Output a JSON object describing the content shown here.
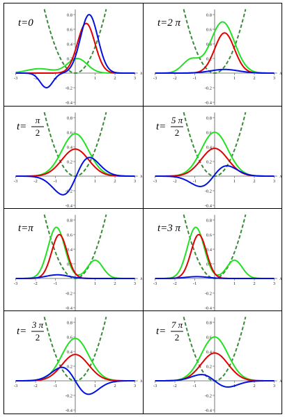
{
  "panels": [
    {
      "label": "t=0",
      "red": {
        "A": 0.68,
        "mu": 0.55,
        "s": 0.62
      },
      "green": {
        "type": "sum",
        "p": [
          {
            "A": 0.2,
            "mu": 0.1,
            "s": 0.7
          },
          {
            "A": 0.06,
            "mu": -1.8,
            "s": 0.9
          }
        ]
      },
      "blue": {
        "type": "sum",
        "p": [
          {
            "A": 0.8,
            "mu": 0.7,
            "s": 0.62
          },
          {
            "A": -0.2,
            "mu": -1.45,
            "s": 0.45
          }
        ]
      }
    },
    {
      "label": "t=2π",
      "red": {
        "A": 0.55,
        "mu": 0.5,
        "s": 0.7
      },
      "green": {
        "type": "sum",
        "p": [
          {
            "A": 0.7,
            "mu": 0.4,
            "s": 0.85
          },
          {
            "A": 0.18,
            "mu": -1.2,
            "s": 0.6
          }
        ]
      },
      "blue": {
        "type": "sum",
        "p": [
          {
            "A": 0.05,
            "mu": 0.5,
            "s": 1.0
          }
        ]
      }
    },
    {
      "label": "t=π/2",
      "red": {
        "A": 0.37,
        "mu": 0.0,
        "s": 0.95
      },
      "green": {
        "type": "sum",
        "p": [
          {
            "A": 0.58,
            "mu": 0.0,
            "s": 0.95
          }
        ]
      },
      "blue": {
        "type": "odd",
        "A": 0.36,
        "s": 0.95,
        "shift": 0.05
      }
    },
    {
      "label": "t=5π/2",
      "red": {
        "A": 0.38,
        "mu": 0.0,
        "s": 0.95
      },
      "green": {
        "type": "sum",
        "p": [
          {
            "A": 0.6,
            "mu": 0.0,
            "s": 0.95
          }
        ]
      },
      "blue": {
        "type": "odd",
        "A": 0.2,
        "s": 0.95,
        "shift": -0.05
      }
    },
    {
      "label": "t=π",
      "red": {
        "A": 0.6,
        "mu": -0.8,
        "s": 0.55
      },
      "green": {
        "type": "sum",
        "p": [
          {
            "A": 0.7,
            "mu": -0.95,
            "s": 0.6
          },
          {
            "A": 0.25,
            "mu": 1.0,
            "s": 0.55
          }
        ]
      },
      "blue": {
        "type": "sum",
        "p": [
          {
            "A": 0.05,
            "mu": -0.9,
            "s": 0.8
          }
        ]
      }
    },
    {
      "label": "t=3π",
      "red": {
        "A": 0.6,
        "mu": -0.8,
        "s": 0.55
      },
      "green": {
        "type": "sum",
        "p": [
          {
            "A": 0.7,
            "mu": -0.95,
            "s": 0.6
          },
          {
            "A": 0.25,
            "mu": 1.0,
            "s": 0.55
          }
        ]
      },
      "blue": {
        "type": "sum",
        "p": [
          {
            "A": 0.025,
            "mu": -0.9,
            "s": 0.8
          }
        ]
      }
    },
    {
      "label": "t=3π/2",
      "red": {
        "A": 0.36,
        "mu": 0.0,
        "s": 0.95
      },
      "green": {
        "type": "sum",
        "p": [
          {
            "A": 0.58,
            "mu": 0.0,
            "s": 0.95
          }
        ]
      },
      "blue": {
        "type": "odd",
        "A": -0.26,
        "s": 0.95,
        "shift": 0.0
      }
    },
    {
      "label": "t=7π/2",
      "red": {
        "A": 0.38,
        "mu": 0.0,
        "s": 0.95
      },
      "green": {
        "type": "sum",
        "p": [
          {
            "A": 0.6,
            "mu": 0.0,
            "s": 0.95
          }
        ]
      },
      "blue": {
        "type": "odd",
        "A": -0.12,
        "s": 0.95,
        "shift": 0.0
      }
    }
  ],
  "panel_labels": [
    {
      "main": "t=0"
    },
    {
      "main": "t=2 π"
    },
    {
      "prefix": "t=",
      "num": "π",
      "den": "2"
    },
    {
      "prefix": "t=",
      "num": "5 π",
      "den": "2"
    },
    {
      "main": "t=π"
    },
    {
      "main": "t=3 π"
    },
    {
      "prefix": "t=",
      "num": "3 π",
      "den": "2"
    },
    {
      "prefix": "t=",
      "num": "7 π",
      "den": "2"
    }
  ],
  "chart_data": {
    "type": "line",
    "panels": 8,
    "xlim": [
      -3,
      3
    ],
    "ylim": [
      -0.4,
      0.8
    ],
    "xticks": [
      -3,
      -2,
      -1,
      1,
      2,
      3
    ],
    "yticks": [
      -0.4,
      -0.2,
      0.2,
      0.4,
      0.6,
      0.8
    ],
    "xlabel": "x",
    "potential": "harmonic (dashed green)"
  },
  "colors": {
    "red": "#e00000",
    "green": "#22e022",
    "blue": "#0010e0",
    "potential": "#3a8a3a"
  },
  "tick_labels": {
    "x": [
      "-3",
      "-2",
      "-1",
      "1",
      "2",
      "3"
    ],
    "y": [
      "-0.4",
      "-0.2",
      "0.2",
      "0.4",
      "0.6",
      "0.8"
    ],
    "axis": "x"
  }
}
